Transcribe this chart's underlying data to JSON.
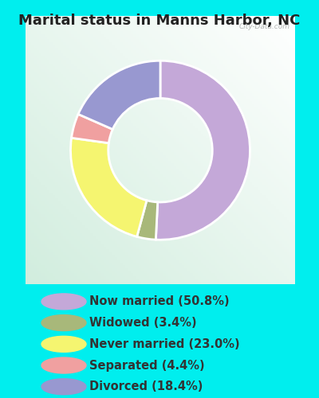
{
  "title": "Marital status in Manns Harbor, NC",
  "slices": [
    {
      "label": "Now married (50.8%)",
      "value": 50.8,
      "color": "#C4A8D8"
    },
    {
      "label": "Widowed (3.4%)",
      "value": 3.4,
      "color": "#A8B87A"
    },
    {
      "label": "Never married (23.0%)",
      "value": 23.0,
      "color": "#F5F570"
    },
    {
      "label": "Separated (4.4%)",
      "value": 4.4,
      "color": "#F0A0A0"
    },
    {
      "label": "Divorced (18.4%)",
      "value": 18.4,
      "color": "#9898D0"
    }
  ],
  "bg_outer": "#00EEEE",
  "title_fontsize": 13,
  "legend_fontsize": 10.5,
  "watermark": "City-Data.com",
  "donut_width": 0.42,
  "start_angle": 90
}
